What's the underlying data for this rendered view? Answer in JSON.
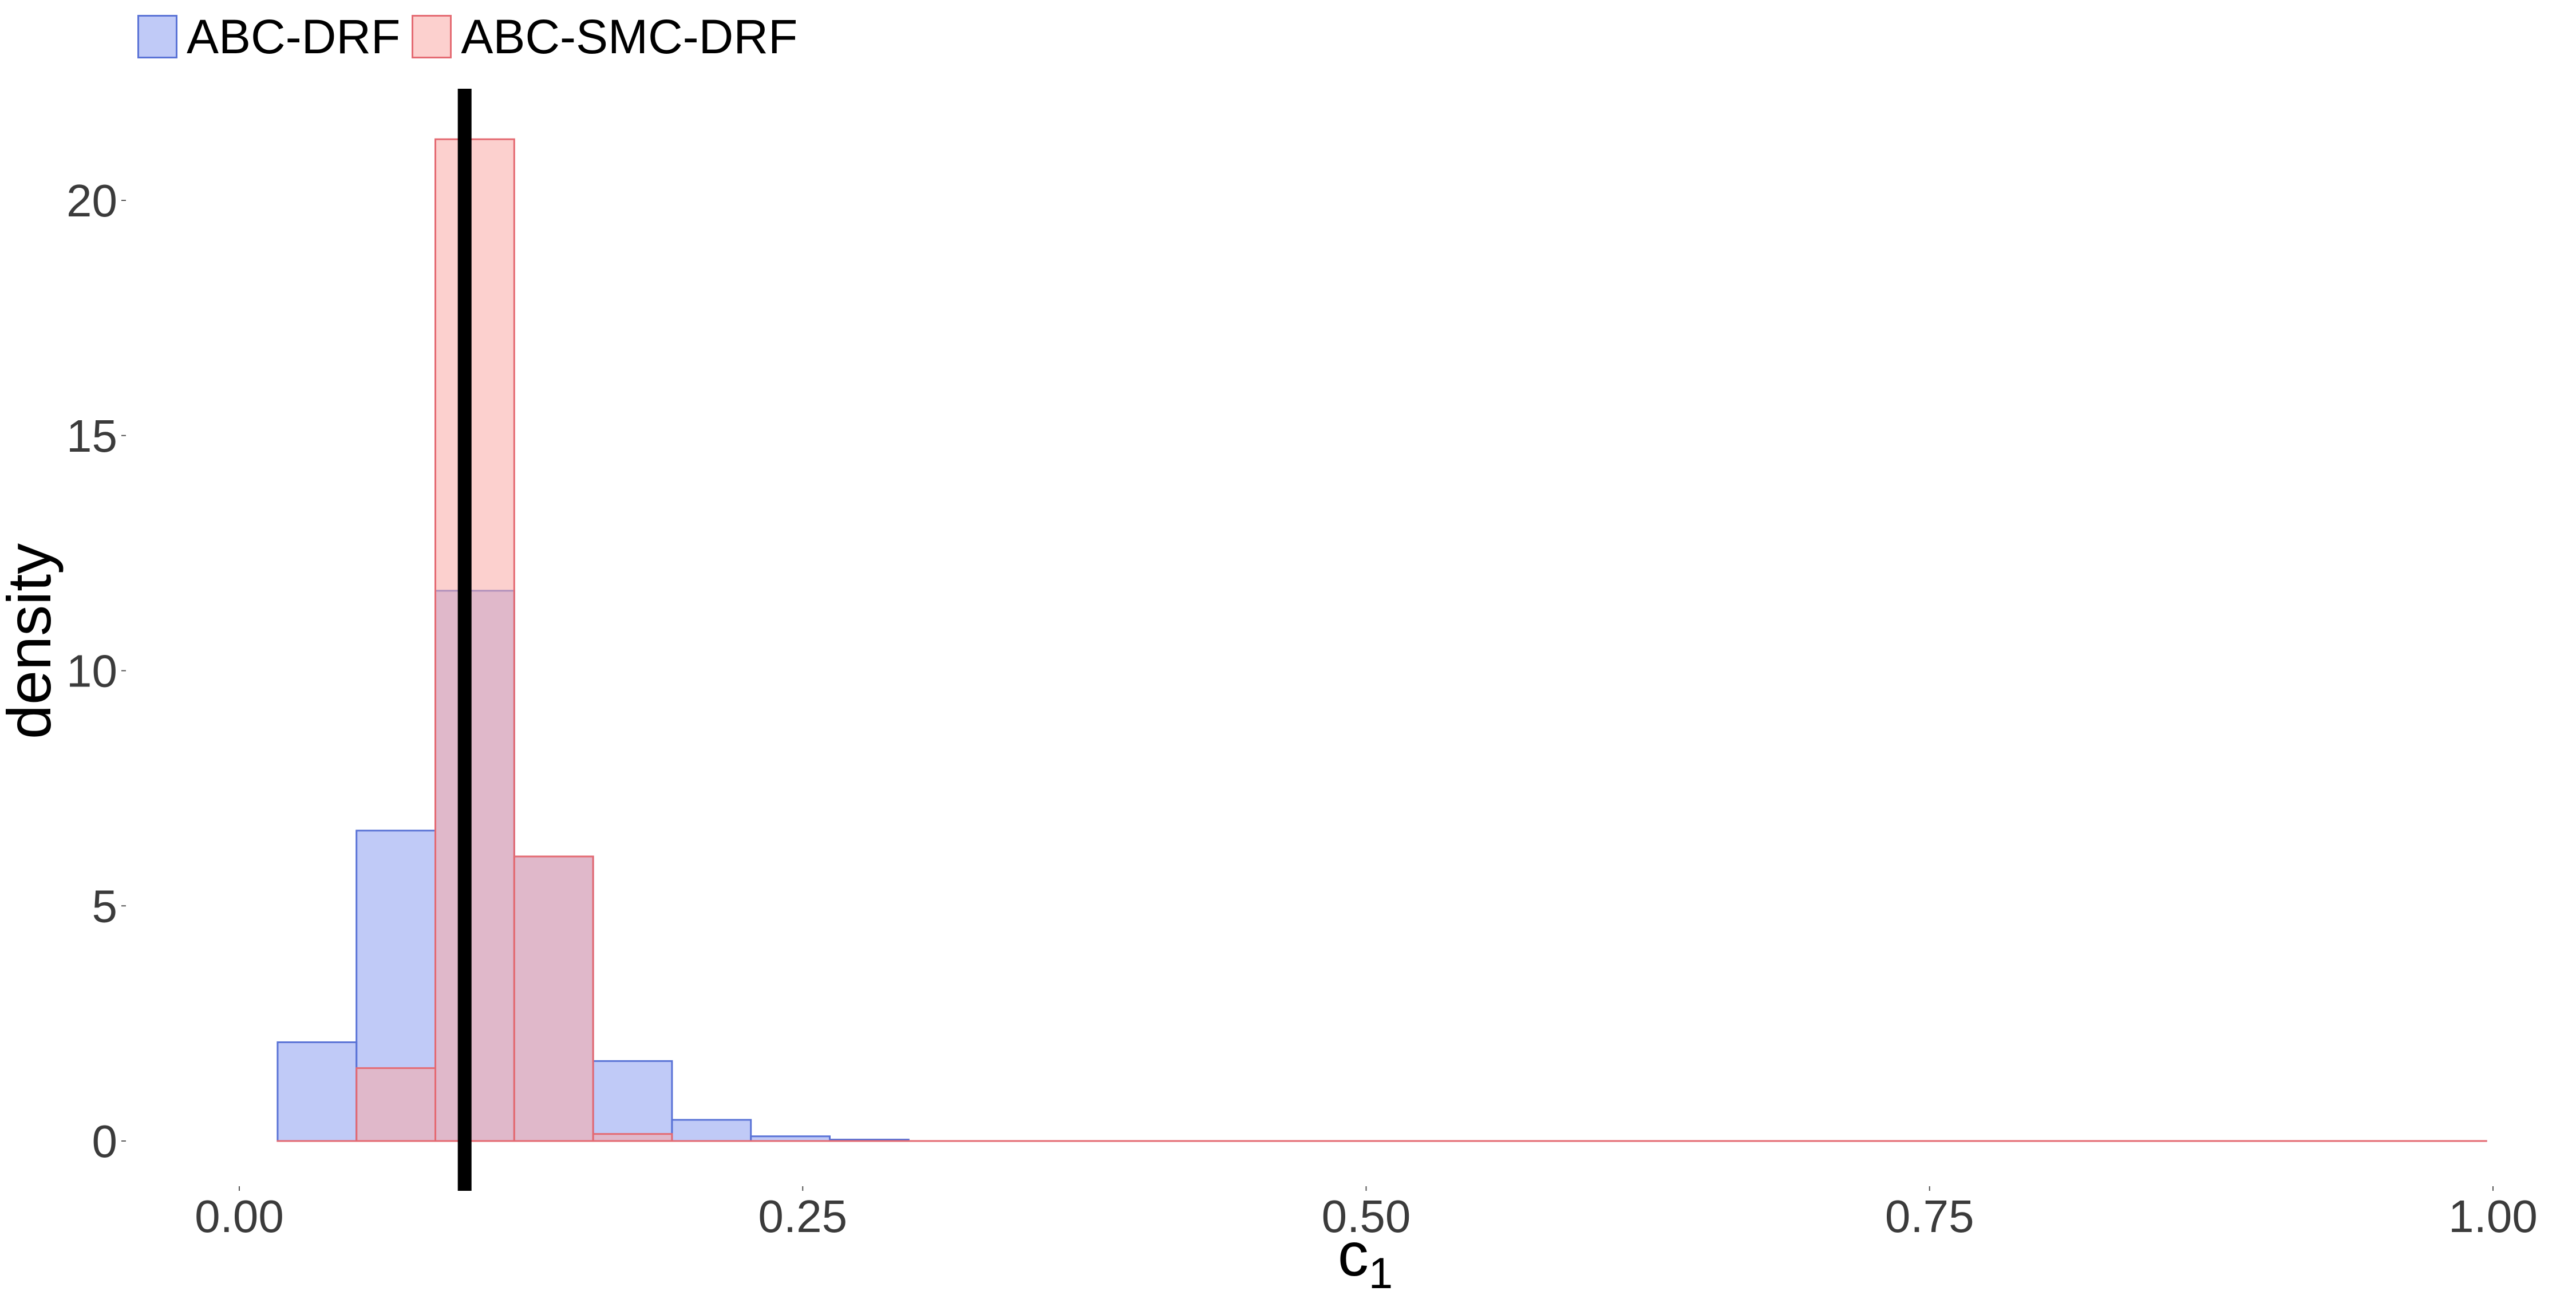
{
  "chart_data": {
    "type": "bar",
    "title": "",
    "xlabel": "c",
    "xlabel_sub": "1",
    "ylabel": "density",
    "xlim": [
      0,
      1
    ],
    "ylim": [
      0,
      22
    ],
    "x_ticks": [
      {
        "value": 0,
        "label": "0.00"
      },
      {
        "value": 0.25,
        "label": "0.25"
      },
      {
        "value": 0.5,
        "label": "0.50"
      },
      {
        "value": 0.75,
        "label": "0.75"
      },
      {
        "value": 1,
        "label": "1.00"
      }
    ],
    "y_ticks": [
      {
        "value": 0,
        "label": "0"
      },
      {
        "value": 5,
        "label": "5"
      },
      {
        "value": 10,
        "label": "10"
      },
      {
        "value": 15,
        "label": "15"
      },
      {
        "value": 20,
        "label": "20"
      }
    ],
    "grid": false,
    "legend_position": "top-left",
    "bin_edges": [
      0.017,
      0.052,
      0.087,
      0.122,
      0.157,
      0.192,
      0.227,
      0.262,
      0.297,
      0.332,
      0.367,
      0.402,
      0.437,
      0.472,
      0.507,
      0.542,
      0.577,
      0.612,
      0.647,
      0.682,
      0.717,
      0.752,
      0.787,
      0.822,
      0.857,
      0.892,
      0.927,
      0.962,
      0.997
    ],
    "series": [
      {
        "name": "ABC-DRF",
        "fill": "#8c9ff0",
        "stroke": "#5a73d6",
        "values": [
          2.1,
          6.6,
          11.7,
          6.05,
          1.7,
          0.45,
          0.1,
          0.03,
          0,
          0,
          0,
          0,
          0,
          0,
          0,
          0,
          0,
          0,
          0,
          0,
          0,
          0,
          0,
          0,
          0,
          0,
          0,
          0
        ]
      },
      {
        "name": "ABC-SMC-DRF",
        "fill": "#f9aaa5",
        "stroke": "#e46a72",
        "values": [
          0,
          1.55,
          21.3,
          6.05,
          0.15,
          0,
          0,
          0,
          0,
          0,
          0,
          0,
          0,
          0,
          0,
          0,
          0,
          0,
          0,
          0,
          0,
          0,
          0,
          0,
          0,
          0,
          0,
          0
        ]
      }
    ],
    "reference_line": {
      "x": 0.1,
      "color": "#000000"
    }
  }
}
